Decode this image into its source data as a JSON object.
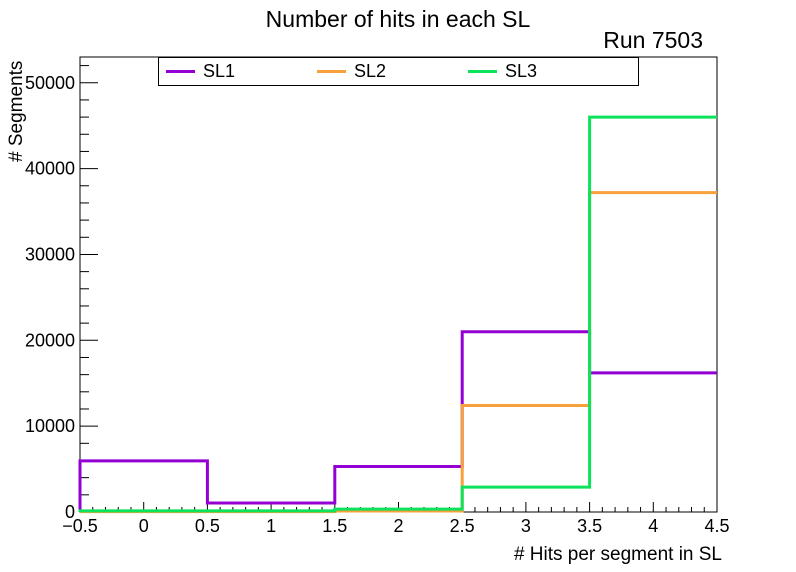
{
  "window": {
    "title": "Number of hits in each SL",
    "run_label": "Run 7503"
  },
  "chart_data": {
    "type": "step-histogram",
    "title": "Number of hits in each SL",
    "annotation": "Run 7503",
    "xlabel": "# Hits per segment in SL",
    "ylabel": "# Segments",
    "xlim": [
      -0.5,
      4.5
    ],
    "ylim": [
      0,
      53000
    ],
    "grid": false,
    "bin_edges": [
      -0.5,
      0.5,
      1.5,
      2.5,
      3.5,
      4.5
    ],
    "bin_centers": [
      0,
      1,
      2,
      3,
      4
    ],
    "series": [
      {
        "name": "SL1",
        "color": "#9400D3",
        "values": [
          5950,
          1050,
          5300,
          21000,
          16200
        ]
      },
      {
        "name": "SL2",
        "color": "#F7A13C",
        "values": [
          50,
          50,
          120,
          12400,
          37200
        ]
      },
      {
        "name": "SL3",
        "color": "#0CE25A",
        "values": [
          130,
          130,
          330,
          2900,
          46000
        ]
      }
    ],
    "x_ticks": {
      "major": [
        -0.5,
        0,
        0.5,
        1,
        1.5,
        2,
        2.5,
        3,
        3.5,
        4,
        4.5
      ],
      "labels": [
        "−0.5",
        "0",
        "0.5",
        "1",
        "1.5",
        "2",
        "2.5",
        "3",
        "3.5",
        "4",
        "4.5"
      ],
      "minor_step": 0.1
    },
    "y_ticks": {
      "major": [
        0,
        10000,
        20000,
        30000,
        40000,
        50000
      ],
      "labels": [
        "0",
        "10000",
        "20000",
        "30000",
        "40000",
        "50000"
      ],
      "minor_step": 2000
    },
    "legend": {
      "position": "top-inside",
      "entries": [
        "SL1",
        "SL2",
        "SL3"
      ]
    },
    "axis_color": "#000000",
    "background_color": "#ffffff"
  }
}
